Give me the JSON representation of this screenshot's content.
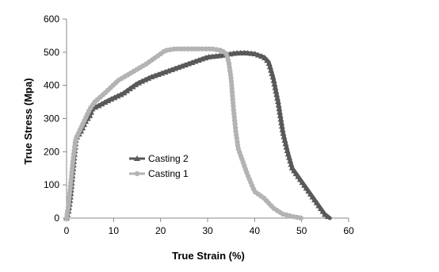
{
  "chart_data": {
    "type": "line",
    "title": "",
    "xlabel": "True Strain (%)",
    "ylabel": "True Stress (Mpa)",
    "xlim": [
      0,
      60
    ],
    "ylim": [
      0,
      600
    ],
    "x_ticks": [
      0,
      10,
      20,
      30,
      40,
      50,
      60
    ],
    "y_ticks": [
      0,
      100,
      200,
      300,
      400,
      500,
      600
    ],
    "x_tick_labels": [
      "0",
      "10",
      "20",
      "30",
      "40",
      "50",
      "60"
    ],
    "y_tick_labels": [
      "0",
      "100",
      "200",
      "300",
      "400",
      "500",
      "600"
    ],
    "grid": false,
    "legend_position": "center-left",
    "series": [
      {
        "name": "Casting 2",
        "marker": "triangle",
        "color": "#595959",
        "points": [
          [
            0,
            0
          ],
          [
            0.4,
            20
          ],
          [
            0.8,
            60
          ],
          [
            1.2,
            120
          ],
          [
            1.6,
            180
          ],
          [
            2,
            240
          ],
          [
            3,
            260
          ],
          [
            4,
            290
          ],
          [
            5,
            310
          ],
          [
            5.5,
            330
          ],
          [
            7,
            340
          ],
          [
            9,
            355
          ],
          [
            12,
            375
          ],
          [
            15,
            405
          ],
          [
            18,
            425
          ],
          [
            21,
            440
          ],
          [
            24,
            455
          ],
          [
            27,
            470
          ],
          [
            30,
            485
          ],
          [
            33,
            490
          ],
          [
            36,
            497
          ],
          [
            38,
            498
          ],
          [
            40,
            495
          ],
          [
            42,
            485
          ],
          [
            43,
            470
          ],
          [
            44,
            420
          ],
          [
            45,
            350
          ],
          [
            46,
            260
          ],
          [
            47,
            200
          ],
          [
            48,
            150
          ],
          [
            50,
            110
          ],
          [
            52,
            70
          ],
          [
            54,
            30
          ],
          [
            55,
            10
          ],
          [
            56,
            0
          ]
        ]
      },
      {
        "name": "Casting 1",
        "marker": "circle",
        "color": "#b3b3b3",
        "points": [
          [
            0,
            0
          ],
          [
            0.5,
            50
          ],
          [
            1,
            120
          ],
          [
            1.5,
            190
          ],
          [
            2,
            240
          ],
          [
            3,
            270
          ],
          [
            4,
            300
          ],
          [
            5,
            330
          ],
          [
            6,
            350
          ],
          [
            8,
            375
          ],
          [
            11,
            415
          ],
          [
            14,
            440
          ],
          [
            17,
            465
          ],
          [
            19,
            485
          ],
          [
            21,
            505
          ],
          [
            23,
            510
          ],
          [
            26,
            510
          ],
          [
            29,
            510
          ],
          [
            31,
            510
          ],
          [
            33,
            505
          ],
          [
            34,
            495
          ],
          [
            34.5,
            470
          ],
          [
            35,
            420
          ],
          [
            35.5,
            330
          ],
          [
            36,
            260
          ],
          [
            36.5,
            210
          ],
          [
            37.5,
            170
          ],
          [
            38.5,
            130
          ],
          [
            40,
            80
          ],
          [
            42,
            60
          ],
          [
            44,
            30
          ],
          [
            46,
            12
          ],
          [
            48,
            5
          ],
          [
            50,
            0
          ]
        ]
      }
    ]
  }
}
